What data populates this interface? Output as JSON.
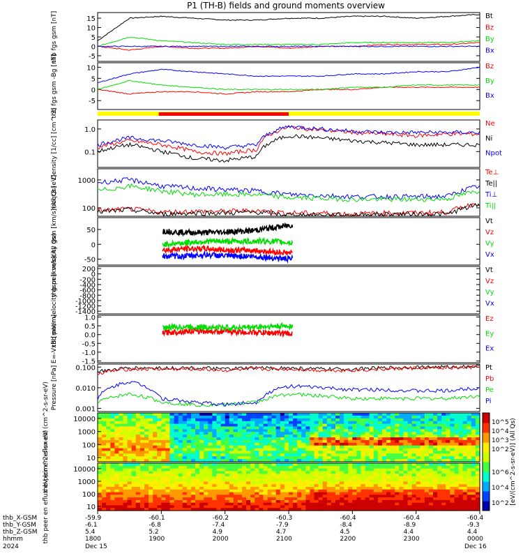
{
  "title": "P1 (TH-B) fields and ground moments overview",
  "colors": {
    "black": "#000000",
    "red": "#ff0000",
    "green": "#00dd00",
    "blue": "#0000ff",
    "yellow": "#ffff00"
  },
  "time_axis": {
    "ticks": [
      "1800",
      "1900",
      "2000",
      "2100",
      "2200",
      "2300",
      "0000"
    ],
    "rows": [
      {
        "label": "thb_X-GSM",
        "values": [
          "-59.9",
          "-60.1",
          "-60.2",
          "-60.3",
          "-60.4",
          "-60.4",
          "-60.4"
        ]
      },
      {
        "label": "thb_Y-GSM",
        "values": [
          "-6.1",
          "-6.8",
          "-7.4",
          "-7.9",
          "-8.4",
          "-8.9",
          "-9.3"
        ]
      },
      {
        "label": "thb_Z-GSM",
        "values": [
          "5.4",
          "5.2",
          "4.9",
          "4.7",
          "4.5",
          "4.4",
          "4.4"
        ]
      },
      {
        "label": "hhmm",
        "values": [
          "1800",
          "1900",
          "2000",
          "2100",
          "2200",
          "2300",
          "0000"
        ]
      }
    ],
    "year": "2024",
    "date_start": "Dec 15",
    "date_end": "Dec 16"
  },
  "colorbar": {
    "top_ticks": [
      "10^5",
      "10^4",
      "10^3",
      "10^2"
    ],
    "bottom_ticks": [
      "10^6",
      "10^4",
      "10^2"
    ],
    "label": "[eV/(cm^2-s-sr-eV)] (All Qs)"
  },
  "chart_data": [
    {
      "type": "line",
      "ylabel": "thb fgs gsm [nT]",
      "yticks": [
        "15",
        "10",
        "5",
        "0",
        "-5"
      ],
      "ylim": [
        -8,
        18
      ],
      "series": [
        {
          "name": "Bt",
          "color": "black",
          "values": [
            3,
            15,
            16,
            15,
            14,
            14,
            15,
            15,
            16,
            16,
            15,
            16,
            17
          ]
        },
        {
          "name": "Bz",
          "color": "red",
          "values": [
            0,
            -2,
            0,
            -1,
            -1,
            0,
            -1,
            0,
            0,
            1,
            1,
            1,
            2
          ]
        },
        {
          "name": "By",
          "color": "green",
          "values": [
            0,
            5,
            3,
            2,
            1,
            1,
            1,
            1,
            2,
            2,
            2,
            2,
            3
          ]
        },
        {
          "name": "Bx",
          "color": "blue",
          "values": [
            0,
            0,
            0,
            0,
            0,
            0,
            0,
            0,
            0,
            0,
            0,
            0,
            0
          ]
        }
      ]
    },
    {
      "type": "line",
      "ylabel": "thb fgs gsm -Bg [nT]",
      "yticks": [
        "10",
        "5",
        "0",
        "-5"
      ],
      "ylim": [
        -9,
        12
      ],
      "series": [
        {
          "name": "Bz",
          "color": "red",
          "values": [
            0,
            -2,
            -1,
            -1,
            -2,
            -1,
            -1,
            0,
            0,
            1,
            1,
            1,
            1
          ]
        },
        {
          "name": "By",
          "color": "green",
          "values": [
            0,
            4,
            2,
            1,
            0,
            0,
            0,
            0,
            1,
            1,
            2,
            2,
            2
          ]
        },
        {
          "name": "Bx",
          "color": "blue",
          "values": [
            3,
            7,
            9,
            8,
            7,
            6,
            6,
            6,
            7,
            7,
            8,
            8,
            10
          ]
        }
      ]
    },
    {
      "type": "line",
      "ylabel": "Density [1/cc] [cm^-3]",
      "yticks": [
        "1.0",
        "0.1"
      ],
      "log": true,
      "ylim": [
        0.02,
        2.5
      ],
      "series": [
        {
          "name": "Ne",
          "color": "red",
          "values": [
            0.15,
            0.3,
            0.2,
            0.1,
            0.08,
            0.12,
            1.2,
            0.9,
            0.7,
            0.6,
            0.5,
            0.6,
            0.6
          ]
        },
        {
          "name": "Ni",
          "color": "black",
          "values": [
            0.1,
            0.2,
            0.1,
            0.05,
            0.04,
            0.06,
            0.5,
            0.4,
            0.3,
            0.25,
            0.2,
            0.2,
            0.2
          ]
        },
        {
          "name": "Npot",
          "color": "blue",
          "values": [
            0.2,
            0.4,
            0.3,
            0.2,
            0.15,
            0.2,
            1.3,
            1.0,
            0.8,
            0.7,
            0.7,
            0.7,
            0.7
          ]
        }
      ]
    },
    {
      "type": "line",
      "ylabel": "moqt3 [eV]",
      "yticks": [
        "1000",
        "100"
      ],
      "log": true,
      "ylim": [
        50,
        2500
      ],
      "series": [
        {
          "name": "Te⊥",
          "color": "red",
          "values": [
            80,
            90,
            70,
            75,
            75,
            80,
            65,
            65,
            60,
            65,
            65,
            70,
            150
          ]
        },
        {
          "name": "Te||",
          "color": "black",
          "values": [
            70,
            85,
            60,
            65,
            65,
            70,
            55,
            55,
            55,
            60,
            60,
            60,
            130
          ]
        },
        {
          "name": "Ti⊥",
          "color": "blue",
          "values": [
            800,
            1000,
            600,
            500,
            450,
            400,
            300,
            280,
            250,
            250,
            250,
            260,
            600
          ]
        },
        {
          "name": "Ti||",
          "color": "green",
          "values": [
            400,
            600,
            400,
            300,
            300,
            300,
            230,
            220,
            200,
            200,
            200,
            210,
            400
          ]
        }
      ]
    },
    {
      "type": "line",
      "ylabel": "thb peir velocity gsm [km/s](All Qs)",
      "yticks": [
        "50",
        "0",
        "-50"
      ],
      "ylim": [
        -70,
        90
      ],
      "series": [
        {
          "name": "Vt",
          "color": "black",
          "values": [
            45,
            40,
            40,
            42,
            45,
            55,
            65
          ]
        },
        {
          "name": "Vz",
          "color": "red",
          "values": [
            -20,
            -15,
            -15,
            -20,
            -20,
            -25,
            -30
          ]
        },
        {
          "name": "Vy",
          "color": "green",
          "values": [
            0,
            5,
            10,
            10,
            10,
            10,
            5
          ]
        },
        {
          "name": "Vx",
          "color": "blue",
          "values": [
            -40,
            -40,
            -35,
            -40,
            -40,
            -45,
            -50
          ]
        }
      ]
    },
    {
      "type": "line",
      "ylabel": "thb peer velocity gsm [km/s](All Qs)",
      "yticks": [
        "200",
        "0",
        "-200",
        "-400",
        "-600",
        "-800",
        "-1000",
        "-1200",
        "-1400"
      ],
      "ylim": [
        -1500,
        280
      ],
      "series": [
        {
          "name": "Vt",
          "color": "black",
          "values": []
        },
        {
          "name": "Vz",
          "color": "red",
          "values": []
        },
        {
          "name": "Vy",
          "color": "green",
          "values": []
        },
        {
          "name": "Vx",
          "color": "blue",
          "values": []
        }
      ]
    },
    {
      "type": "line",
      "ylabel": "E=-VxB [mV/m]",
      "yticks": [
        "1.0",
        "0.5",
        "0.0",
        "-0.5",
        "-1.0",
        "-1.5"
      ],
      "ylim": [
        -1.6,
        1.1
      ],
      "series": [
        {
          "name": "Ez",
          "color": "red",
          "values": [
            0.1,
            0.2,
            0.2,
            0.15,
            0.1,
            0.05
          ]
        },
        {
          "name": "Ey",
          "color": "green",
          "values": [
            0.4,
            0.45,
            0.4,
            0.4,
            0.45,
            0.5
          ]
        },
        {
          "name": "Ex",
          "color": "blue",
          "values": []
        }
      ]
    },
    {
      "type": "line",
      "ylabel": "Pressure [nPa]",
      "yticks": [
        "0.100",
        "0.010",
        "0.001"
      ],
      "log": true,
      "ylim": [
        0.0007,
        0.14
      ],
      "series": [
        {
          "name": "Pt",
          "color": "black",
          "values": [
            0.06,
            0.09,
            0.09,
            0.09,
            0.08,
            0.09,
            0.09,
            0.08,
            0.08,
            0.09,
            0.1,
            0.1,
            0.11
          ]
        },
        {
          "name": "Pb",
          "color": "red",
          "values": [
            0.05,
            0.08,
            0.08,
            0.08,
            0.07,
            0.08,
            0.08,
            0.07,
            0.07,
            0.08,
            0.09,
            0.09,
            0.1
          ]
        },
        {
          "name": "Pe",
          "color": "green",
          "values": [
            0.002,
            0.005,
            0.002,
            0.0015,
            0.0015,
            0.002,
            0.005,
            0.004,
            0.003,
            0.003,
            0.003,
            0.003,
            0.004
          ]
        },
        {
          "name": "Pi",
          "color": "blue",
          "values": [
            0.003,
            0.02,
            0.003,
            0.002,
            0.0015,
            0.002,
            0.012,
            0.01,
            0.008,
            0.008,
            0.007,
            0.007,
            0.01
          ]
        }
      ]
    },
    {
      "type": "heatmap",
      "ylabel": "thb peir en eflux eV (cm^2-s-sr-eV)",
      "yticks": [
        "10000",
        "1000",
        "100",
        "10"
      ]
    },
    {
      "type": "heatmap",
      "ylabel": "thb peer en eflux eV (cm^2-s-sr-eV)",
      "yticks": [
        "10000",
        "1000",
        "100",
        "10"
      ]
    }
  ],
  "bars": {
    "yellow": "full interval",
    "red": "1900-2105"
  }
}
